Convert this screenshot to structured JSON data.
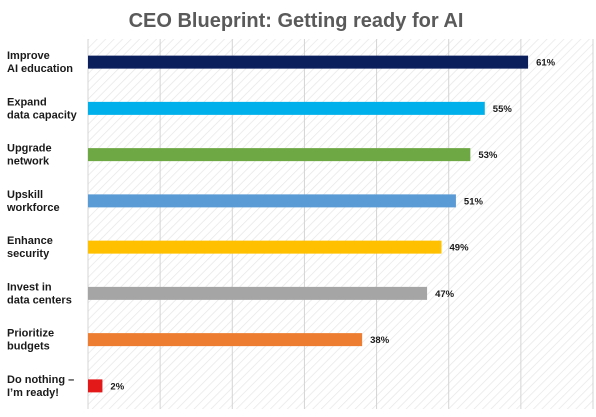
{
  "chart_data": {
    "type": "bar",
    "orientation": "horizontal",
    "title": "CEO Blueprint: Getting ready for AI",
    "xlabel": "",
    "ylabel": "",
    "xlim": [
      0,
      70
    ],
    "grid": true,
    "categories": [
      [
        "Improve",
        "AI education"
      ],
      [
        "Expand",
        "data capacity"
      ],
      [
        "Upgrade",
        "network"
      ],
      [
        "Upskill",
        "workforce"
      ],
      [
        "Enhance",
        "security"
      ],
      [
        "Invest in",
        "data centers"
      ],
      [
        "Prioritize",
        "budgets"
      ],
      [
        "Do nothing –",
        "I’m ready!"
      ]
    ],
    "values": [
      61,
      55,
      53,
      51,
      49,
      47,
      38,
      2
    ],
    "value_suffix": "%",
    "colors": [
      "#0b1f5c",
      "#00b0ea",
      "#6ea845",
      "#5b9bd5",
      "#ffc000",
      "#a5a5a5",
      "#ed7d31",
      "#e31919"
    ]
  }
}
